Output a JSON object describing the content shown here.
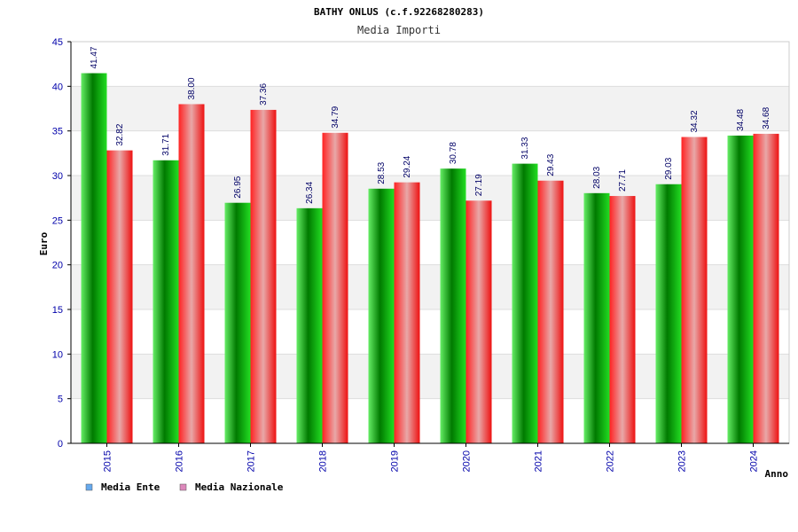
{
  "chart_data": {
    "type": "bar",
    "title": "BATHY ONLUS (c.f.92268280283)",
    "subtitle": "Media Importi",
    "xlabel": "Anno",
    "ylabel": "Euro",
    "categories": [
      "2015",
      "2016",
      "2017",
      "2018",
      "2019",
      "2020",
      "2021",
      "2022",
      "2023",
      "2024"
    ],
    "series": [
      {
        "name": "Media Ente",
        "values": [
          41.47,
          31.71,
          26.95,
          26.34,
          28.53,
          30.78,
          31.33,
          28.03,
          29.03,
          34.48
        ],
        "labels": [
          "41.47",
          "31.71",
          "26.95",
          "26.34",
          "28.53",
          "30.78",
          "31.33",
          "28.03",
          "29.03",
          "34.48"
        ],
        "color": "#00b000",
        "legend_color": "#66aaee"
      },
      {
        "name": "Media Nazionale",
        "values": [
          32.82,
          38.0,
          37.36,
          34.79,
          29.24,
          27.19,
          29.43,
          27.71,
          34.32,
          34.68
        ],
        "labels": [
          "32.82",
          "38.00",
          "37.36",
          "34.79",
          "29.24",
          "27.19",
          "29.43",
          "27.71",
          "34.32",
          "34.68"
        ],
        "color": "#ee1111",
        "legend_color": "#dd88bb"
      }
    ],
    "ylim": [
      0,
      45
    ],
    "yticks": [
      "0",
      "5",
      "10",
      "15",
      "20",
      "25",
      "30",
      "35",
      "40",
      "45"
    ],
    "grid": true,
    "legend_position": "bottom-left"
  }
}
